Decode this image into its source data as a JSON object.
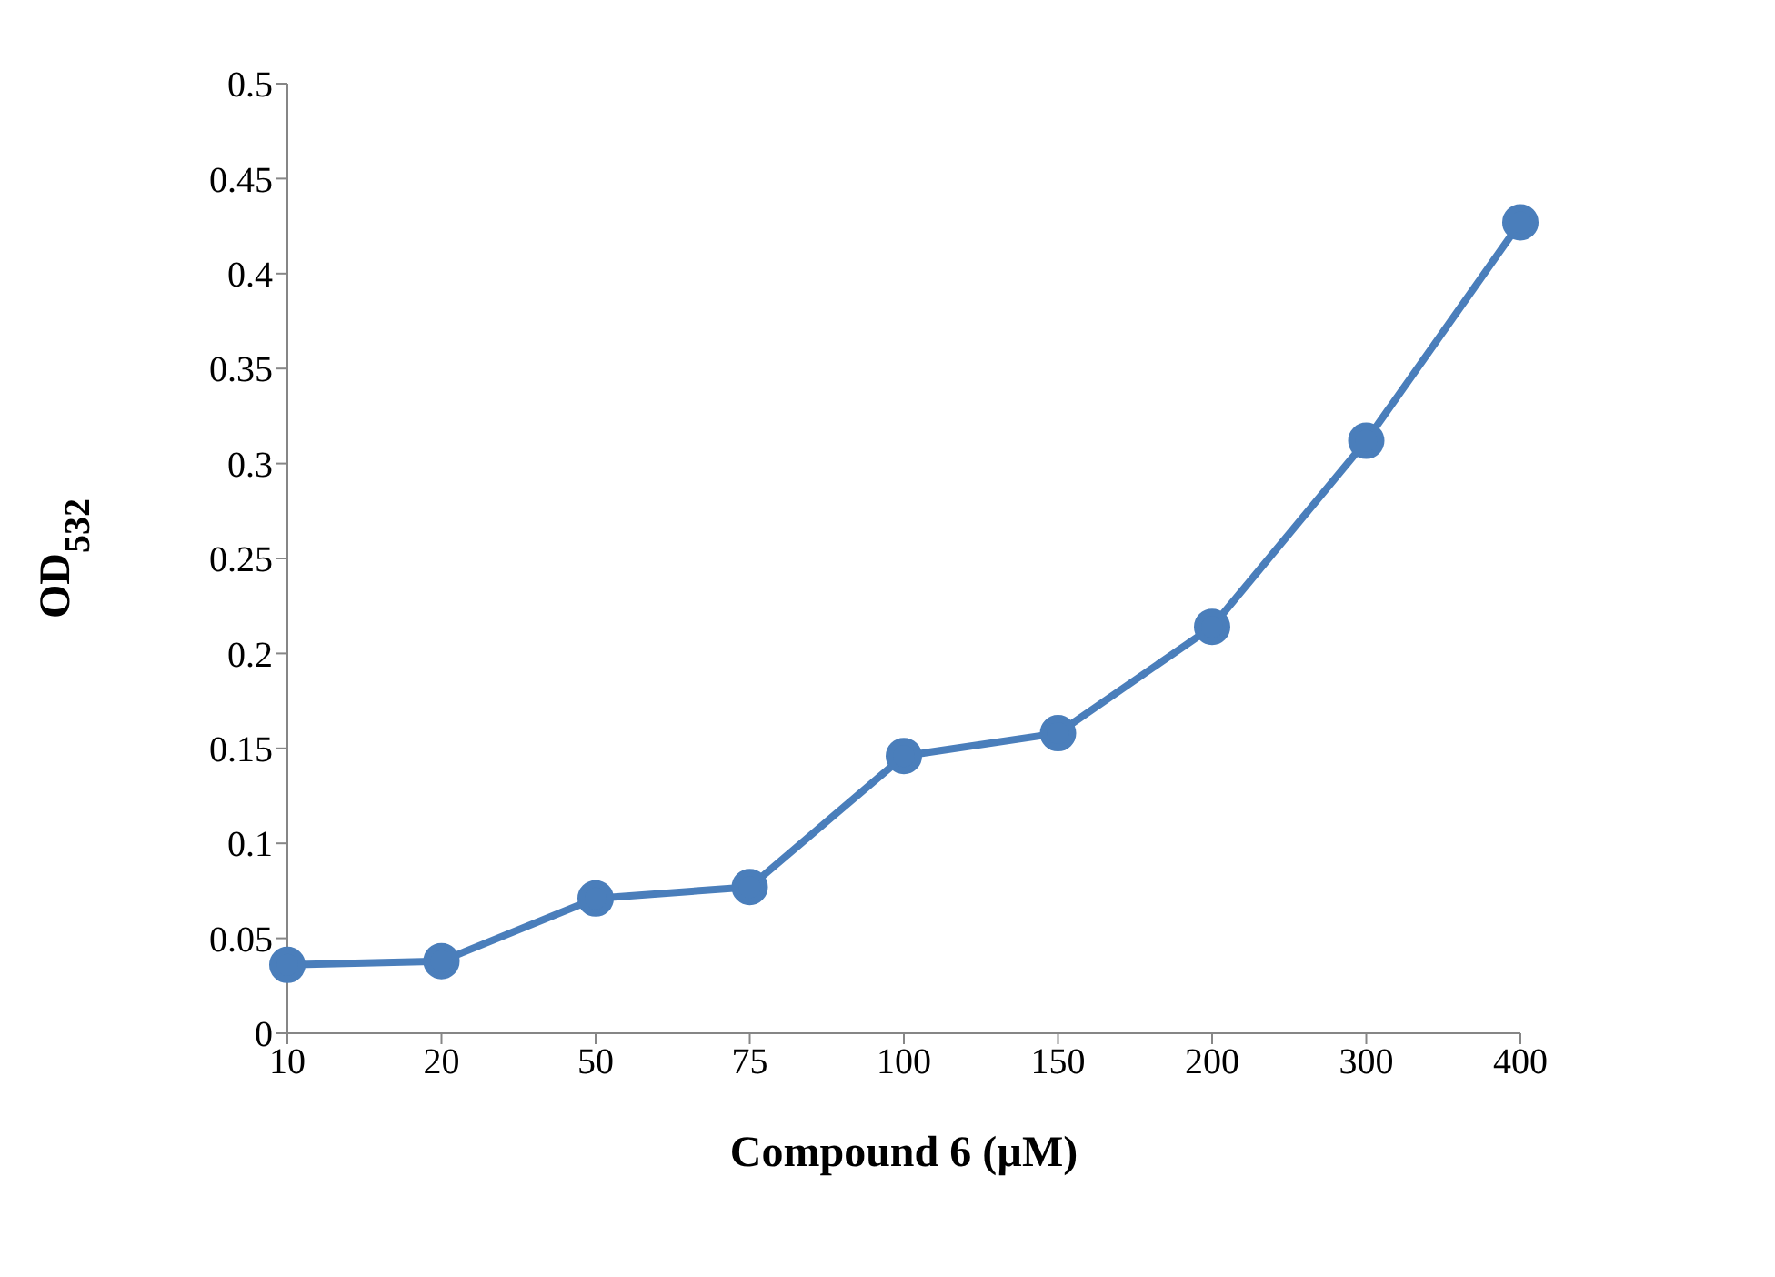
{
  "chart_data": {
    "type": "line",
    "xlabel": "Compound 6  (µM)",
    "ylabel": "OD$_{532}$",
    "categories": [
      "10",
      "20",
      "50",
      "75",
      "100",
      "150",
      "200",
      "300",
      "400"
    ],
    "series": [
      {
        "color": "#4a7ebb",
        "values": [
          0.036,
          0.038,
          0.071,
          0.077,
          0.146,
          0.158,
          0.214,
          0.312,
          0.427
        ]
      }
    ],
    "ylim": [
      0,
      0.5
    ],
    "yticks": [
      0,
      0.05,
      0.1,
      0.15,
      0.2,
      0.25,
      0.3,
      0.35,
      0.4,
      0.45,
      0.5
    ],
    "grid": false,
    "legend": false,
    "marker": "circle",
    "line_style": "solid"
  }
}
